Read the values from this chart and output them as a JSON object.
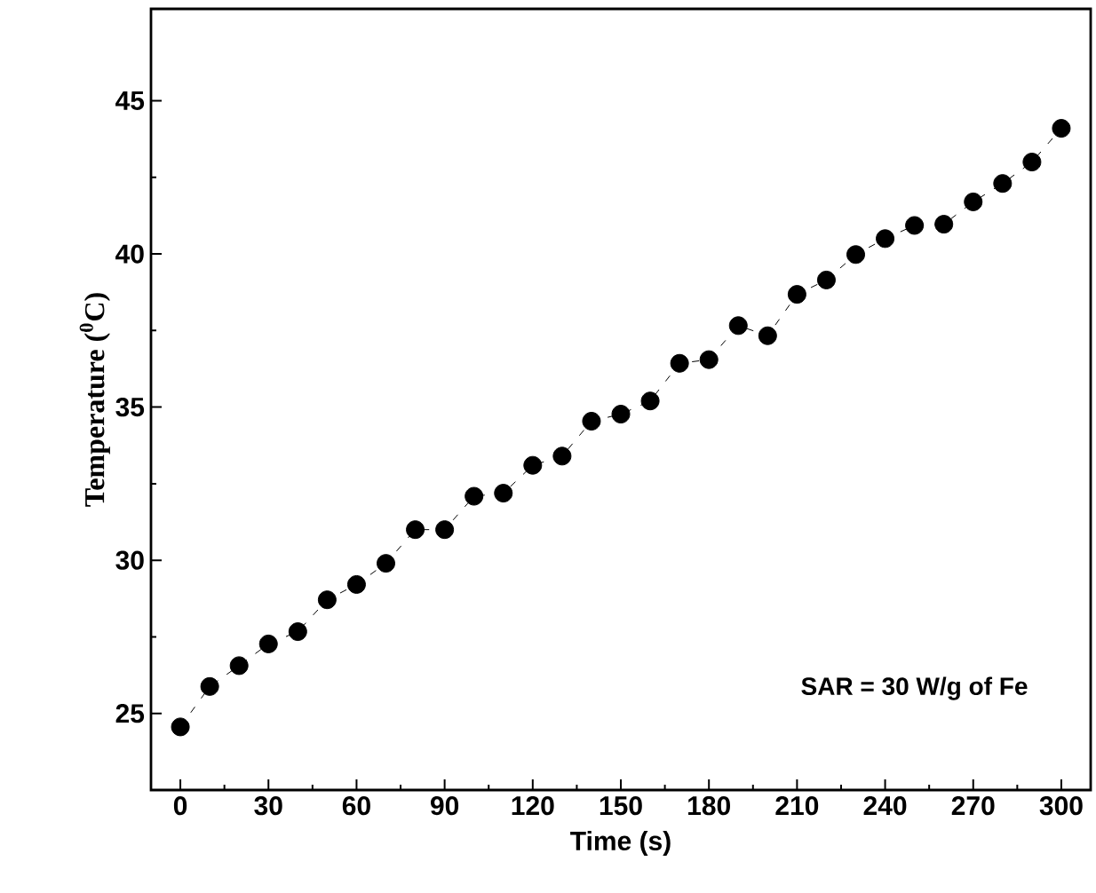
{
  "chart_data": {
    "type": "line",
    "xlabel": "Time (s)",
    "ylabel": "**Temperature (**$^{0}$**C)**",
    "x": [
      0,
      10,
      20,
      30,
      40,
      50,
      60,
      70,
      80,
      90,
      100,
      110,
      120,
      130,
      140,
      150,
      160,
      170,
      180,
      190,
      200,
      210,
      220,
      230,
      240,
      250,
      260,
      270,
      280,
      290,
      300
    ],
    "series": [
      {
        "color": "#000000",
        "values": [
          24.56,
          25.88,
          26.56,
          27.27,
          27.67,
          28.71,
          29.21,
          29.9,
          31.0,
          31.0,
          32.09,
          32.19,
          33.1,
          33.4,
          34.54,
          34.77,
          35.2,
          36.43,
          36.55,
          37.66,
          37.33,
          38.68,
          39.15,
          39.98,
          40.5,
          40.93,
          40.97,
          41.7,
          42.3,
          43.0,
          44.1
        ]
      }
    ],
    "marker": "circle",
    "line_style": "dashed",
    "grid": false,
    "xlim": [
      -10,
      310
    ],
    "ylim": [
      22.5,
      48
    ],
    "xticks": [
      0,
      30,
      60,
      90,
      120,
      150,
      180,
      210,
      240,
      270,
      300
    ],
    "yticks": [
      25,
      30,
      35,
      40,
      45
    ],
    "annotations": [
      "SAR = 30 W/g of Fe"
    ]
  }
}
